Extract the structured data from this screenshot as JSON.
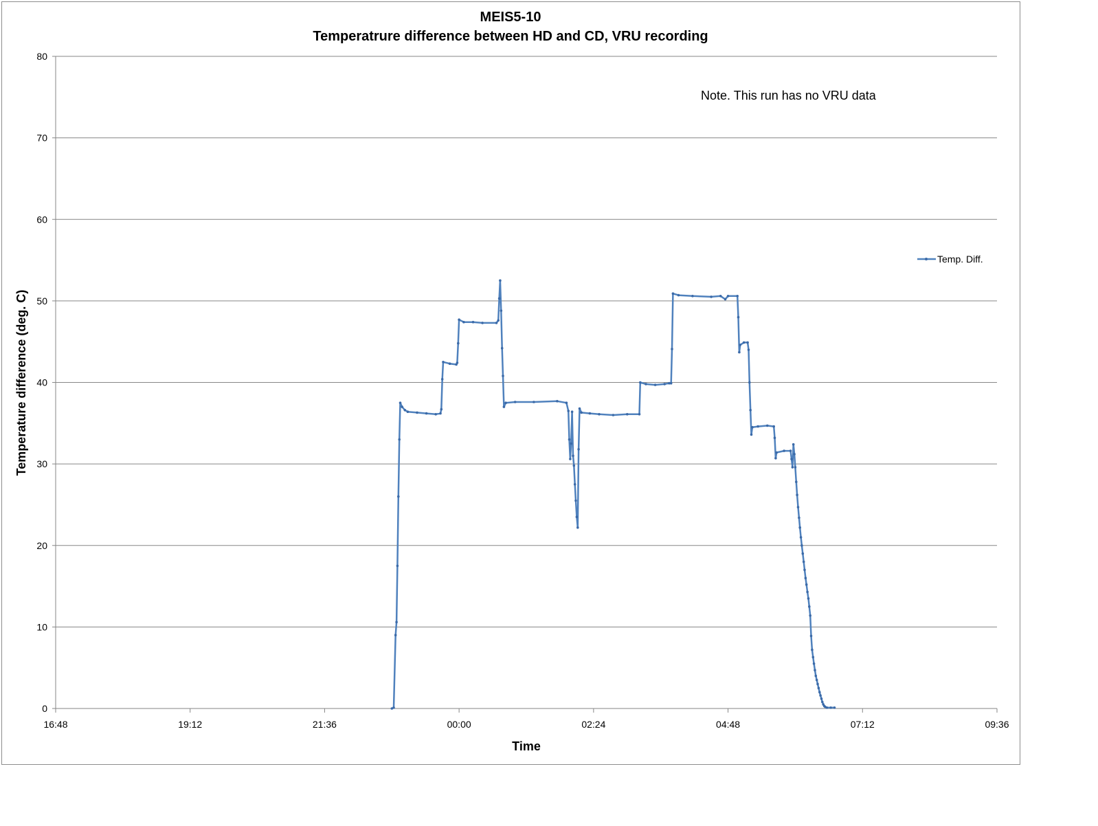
{
  "chart_data": {
    "type": "line",
    "title": "MEIS5-10",
    "subtitle": "Temperatrure difference between HD and CD, VRU recording",
    "xlabel": "Time",
    "ylabel": "Temperature difference (deg. C)",
    "ylim": [
      0,
      80
    ],
    "yticks": [
      0,
      10,
      20,
      30,
      40,
      50,
      60,
      70,
      80
    ],
    "xlim": [
      "16:48",
      "09:36"
    ],
    "xticks": [
      "16:48",
      "19:12",
      "21:36",
      "00:00",
      "02:24",
      "04:48",
      "07:12",
      "09:36"
    ],
    "grid": "horizontal major gridlines",
    "legend_position": "right",
    "annotation": "Note. This run has no VRU data",
    "series": [
      {
        "name": "Temp. Diff.",
        "color": "#4f81bd",
        "marker": "small dot",
        "points": [
          [
            "22:48",
            0.0
          ],
          [
            "22:50",
            0.1
          ],
          [
            "22:52",
            9.0
          ],
          [
            "22:53",
            10.6
          ],
          [
            "22:54",
            17.5
          ],
          [
            "22:55",
            26.0
          ],
          [
            "22:56",
            33.0
          ],
          [
            "22:57",
            37.5
          ],
          [
            "22:59",
            37.0
          ],
          [
            "23:02",
            36.6
          ],
          [
            "23:05",
            36.4
          ],
          [
            "23:15",
            36.3
          ],
          [
            "23:25",
            36.2
          ],
          [
            "23:35",
            36.1
          ],
          [
            "23:40",
            36.2
          ],
          [
            "23:41",
            36.7
          ],
          [
            "23:42",
            40.4
          ],
          [
            "23:43",
            42.5
          ],
          [
            "23:50",
            42.3
          ],
          [
            "23:57",
            42.2
          ],
          [
            "23:58",
            42.4
          ],
          [
            "23:59",
            44.8
          ],
          [
            "24:00",
            47.7
          ],
          [
            "24:05",
            47.4
          ],
          [
            "24:15",
            47.4
          ],
          [
            "24:25",
            47.3
          ],
          [
            "24:40",
            47.3
          ],
          [
            "24:42",
            47.6
          ],
          [
            "24:43",
            50.3
          ],
          [
            "24:44",
            52.5
          ],
          [
            "24:45",
            48.8
          ],
          [
            "24:46",
            44.2
          ],
          [
            "24:47",
            40.8
          ],
          [
            "24:48",
            37.0
          ],
          [
            "24:50",
            37.5
          ],
          [
            "25:00",
            37.6
          ],
          [
            "25:20",
            37.6
          ],
          [
            "25:45",
            37.7
          ],
          [
            "25:55",
            37.5
          ],
          [
            "25:57",
            36.5
          ],
          [
            "25:58",
            33.0
          ],
          [
            "25:59",
            30.6
          ],
          [
            "26:00",
            32.5
          ],
          [
            "26:01",
            36.4
          ],
          [
            "26:02",
            31.0
          ],
          [
            "26:03",
            29.8
          ],
          [
            "26:04",
            27.5
          ],
          [
            "26:05",
            25.5
          ],
          [
            "26:06",
            23.5
          ],
          [
            "26:07",
            22.2
          ],
          [
            "26:08",
            31.8
          ],
          [
            "26:09",
            36.8
          ],
          [
            "26:11",
            36.3
          ],
          [
            "26:20",
            36.2
          ],
          [
            "26:30",
            36.1
          ],
          [
            "26:45",
            36.0
          ],
          [
            "27:00",
            36.1
          ],
          [
            "27:13",
            36.1
          ],
          [
            "27:14",
            40.0
          ],
          [
            "27:20",
            39.8
          ],
          [
            "27:30",
            39.7
          ],
          [
            "27:40",
            39.8
          ],
          [
            "27:45",
            39.9
          ],
          [
            "27:47",
            39.9
          ],
          [
            "27:48",
            44.1
          ],
          [
            "27:49",
            50.9
          ],
          [
            "27:55",
            50.7
          ],
          [
            "28:10",
            50.6
          ],
          [
            "28:30",
            50.5
          ],
          [
            "28:40",
            50.6
          ],
          [
            "28:45",
            50.2
          ],
          [
            "28:48",
            50.6
          ],
          [
            "28:58",
            50.6
          ],
          [
            "28:59",
            48.0
          ],
          [
            "29:00",
            43.7
          ],
          [
            "29:01",
            44.6
          ],
          [
            "29:05",
            44.9
          ],
          [
            "29:09",
            44.9
          ],
          [
            "29:10",
            44.0
          ],
          [
            "29:11",
            40.0
          ],
          [
            "29:12",
            36.6
          ],
          [
            "29:13",
            33.6
          ],
          [
            "29:14",
            34.5
          ],
          [
            "29:20",
            34.6
          ],
          [
            "29:30",
            34.7
          ],
          [
            "29:37",
            34.6
          ],
          [
            "29:38",
            33.2
          ],
          [
            "29:39",
            30.7
          ],
          [
            "29:40",
            31.4
          ],
          [
            "29:48",
            31.6
          ],
          [
            "29:55",
            31.6
          ],
          [
            "29:56",
            30.6
          ],
          [
            "29:57",
            29.6
          ],
          [
            "29:58",
            32.4
          ],
          [
            "29:59",
            31.2
          ],
          [
            "30:00",
            29.6
          ],
          [
            "30:01",
            27.8
          ],
          [
            "30:02",
            26.2
          ],
          [
            "30:03",
            24.7
          ],
          [
            "30:04",
            23.4
          ],
          [
            "30:05",
            22.2
          ],
          [
            "30:06",
            21.0
          ],
          [
            "30:07",
            20.0
          ],
          [
            "30:08",
            19.0
          ],
          [
            "30:09",
            18.0
          ],
          [
            "30:10",
            17.0
          ],
          [
            "30:11",
            16.0
          ],
          [
            "30:12",
            15.2
          ],
          [
            "30:13",
            14.3
          ],
          [
            "30:14",
            13.5
          ],
          [
            "30:15",
            12.5
          ],
          [
            "30:16",
            11.4
          ],
          [
            "30:17",
            8.9
          ],
          [
            "30:18",
            7.2
          ],
          [
            "30:19",
            6.3
          ],
          [
            "30:20",
            5.5
          ],
          [
            "30:21",
            4.7
          ],
          [
            "30:22",
            4.0
          ],
          [
            "30:23",
            3.5
          ],
          [
            "30:24",
            3.0
          ],
          [
            "30:25",
            2.5
          ],
          [
            "30:26",
            2.0
          ],
          [
            "30:27",
            1.6
          ],
          [
            "30:28",
            1.2
          ],
          [
            "30:29",
            0.8
          ],
          [
            "30:30",
            0.5
          ],
          [
            "30:31",
            0.3
          ],
          [
            "30:32",
            0.2
          ],
          [
            "30:34",
            0.1
          ],
          [
            "30:38",
            0.1
          ],
          [
            "30:42",
            0.1
          ]
        ]
      }
    ]
  }
}
